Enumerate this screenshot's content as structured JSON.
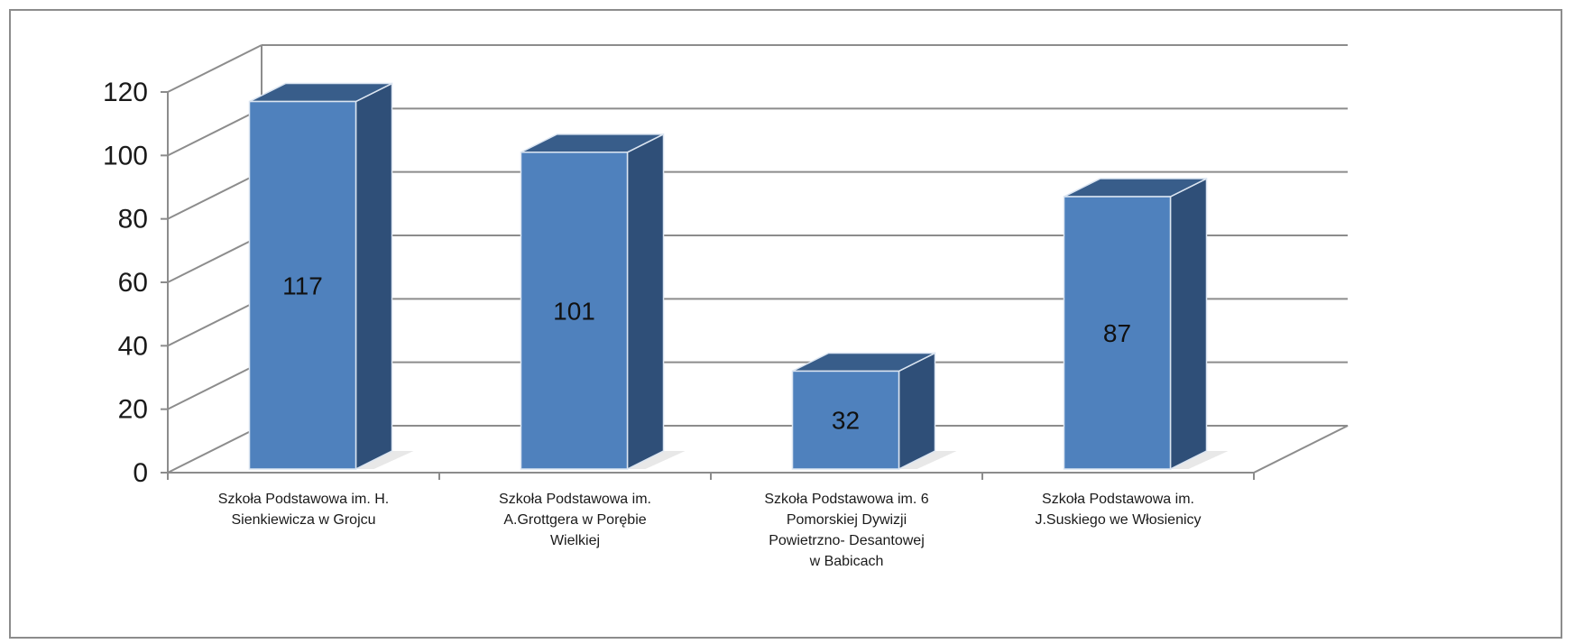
{
  "chart_data": {
    "type": "bar",
    "style": "3d-column",
    "categories": [
      [
        "Szkoła Podstawowa im. H.",
        "Sienkiewicza w Grojcu"
      ],
      [
        "Szkoła Podstawowa im.",
        "A.Grottgera w Porębie",
        "Wielkiej"
      ],
      [
        "Szkoła Podstawowa im. 6",
        "Pomorskiej Dywizji",
        "Powietrzno- Desantowej",
        "w Babicach"
      ],
      [
        "Szkoła Podstawowa im.",
        "J.Suskiego we Włosienicy"
      ]
    ],
    "values": [
      117,
      101,
      32,
      87
    ],
    "data_labels": [
      "117",
      "101",
      "32",
      "87"
    ],
    "yticks": [
      "0",
      "20",
      "40",
      "60",
      "80",
      "100",
      "120"
    ],
    "ylim": [
      0,
      120
    ],
    "title": "",
    "xlabel": "",
    "ylabel": "",
    "grid": true,
    "legend": "none",
    "colors": {
      "bar_front": "#4f81bd",
      "bar_top": "#385d8a",
      "bar_side": "#2f4f78",
      "bar_edge": "#dbe5f1",
      "grid": "#8c8c8c",
      "axis": "#8c8c8c"
    }
  }
}
